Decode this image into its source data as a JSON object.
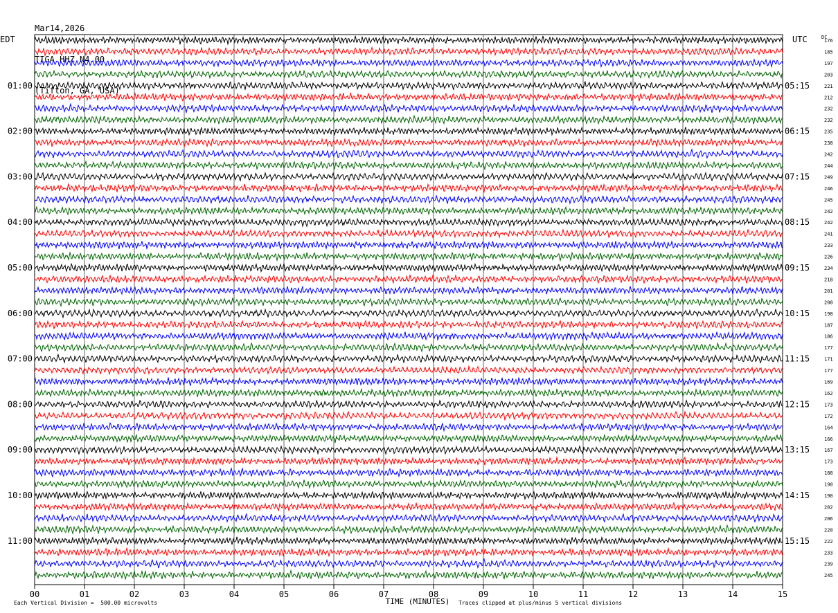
{
  "header": {
    "date": "Mar14,2026",
    "station": "TIGA HHZ N4 00",
    "location": "(Tifton, GA, USA)"
  },
  "left_tz": "EDT",
  "right_tz": "UTC",
  "dc_label": "DC",
  "footer": {
    "scale_note": "Each Vertical Division =  500.00 microvolts",
    "clip_note": "Traces clipped at plus/minus 5 vertical divisions"
  },
  "chart_data": {
    "type": "line",
    "xlabel": "TIME (MINUTES)",
    "xlim": [
      0,
      15
    ],
    "x_ticks": [
      "00",
      "01",
      "02",
      "03",
      "04",
      "05",
      "06",
      "07",
      "08",
      "09",
      "10",
      "11",
      "12",
      "13",
      "14",
      "15"
    ],
    "left_hour_labels": [
      "01:00",
      "02:00",
      "03:00",
      "04:00",
      "05:00",
      "06:00",
      "07:00",
      "08:00",
      "09:00",
      "10:00",
      "11:00"
    ],
    "right_hour_labels": [
      "05:15",
      "06:15",
      "07:15",
      "08:15",
      "09:15",
      "10:15",
      "11:15",
      "12:15",
      "13:15",
      "14:15",
      "15:15"
    ],
    "trace_colors": [
      "#000000",
      "#ff0000",
      "#0000ff",
      "#006400"
    ],
    "dc_offsets": [
      176,
      185,
      197,
      203,
      221,
      212,
      232,
      232,
      235,
      238,
      242,
      244,
      249,
      246,
      245,
      242,
      242,
      241,
      233,
      226,
      234,
      218,
      201,
      208,
      198,
      187,
      186,
      177,
      171,
      177,
      169,
      162,
      173,
      172,
      164,
      166,
      167,
      173,
      188,
      190,
      190,
      202,
      206,
      220,
      222,
      233,
      239,
      245
    ]
  }
}
